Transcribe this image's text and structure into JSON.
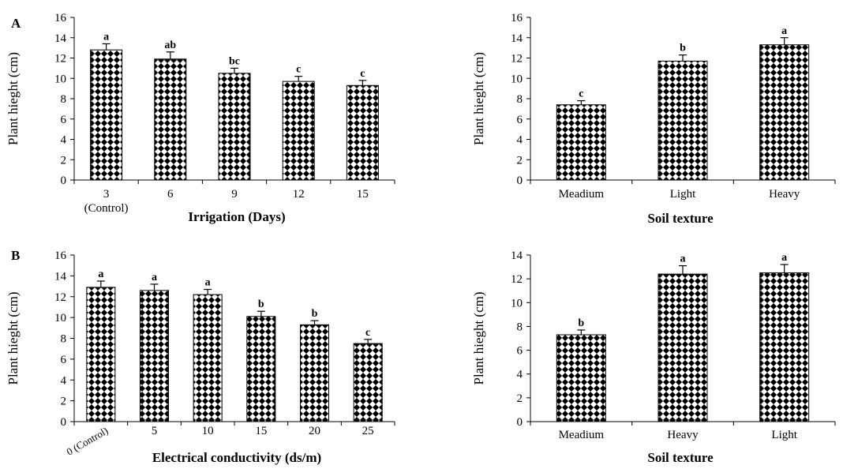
{
  "panel_labels": [
    "A",
    "B"
  ],
  "chart_data": [
    {
      "type": "bar",
      "panel": "A",
      "categories": [
        "3\n(Control)",
        "6",
        "9",
        "12",
        "15"
      ],
      "values": [
        12.8,
        11.9,
        10.5,
        9.7,
        9.3
      ],
      "errors": [
        0.6,
        0.7,
        0.5,
        0.5,
        0.5
      ],
      "letters": [
        "a",
        "ab",
        "bc",
        "c",
        "c"
      ],
      "xlabel": "Irrigation (Days)",
      "ylabel": "Plant hieght  (cm)",
      "ylim": [
        0,
        16
      ],
      "yticks": [
        0,
        2,
        4,
        6,
        8,
        10,
        12,
        14,
        16
      ],
      "grid": false
    },
    {
      "type": "bar",
      "categories": [
        "Meadium",
        "Light",
        "Heavy"
      ],
      "values": [
        7.4,
        11.7,
        13.3
      ],
      "errors": [
        0.4,
        0.6,
        0.7
      ],
      "letters": [
        "c",
        "b",
        "a"
      ],
      "xlabel": "Soil texture",
      "ylabel": "Plant hieght  (cm)",
      "ylim": [
        0,
        16
      ],
      "yticks": [
        0,
        2,
        4,
        6,
        8,
        10,
        12,
        14,
        16
      ],
      "grid": false
    },
    {
      "type": "bar",
      "panel": "B",
      "categories": [
        "0 (Control)",
        "5",
        "10",
        "15",
        "20",
        "25"
      ],
      "values": [
        12.9,
        12.6,
        12.2,
        10.1,
        9.3,
        7.5
      ],
      "errors": [
        0.6,
        0.6,
        0.5,
        0.5,
        0.4,
        0.4
      ],
      "letters": [
        "a",
        "a",
        "a",
        "b",
        "b",
        "c"
      ],
      "xlabel": "Electrical conductivity (ds/m)",
      "ylabel": "Plant hieght  (cm)",
      "ylim": [
        0,
        16
      ],
      "yticks": [
        0,
        2,
        4,
        6,
        8,
        10,
        12,
        14,
        16
      ],
      "grid": false
    },
    {
      "type": "bar",
      "categories": [
        "Meadium",
        "Heavy",
        "Light"
      ],
      "values": [
        7.3,
        12.4,
        12.5
      ],
      "errors": [
        0.4,
        0.7,
        0.7
      ],
      "letters": [
        "b",
        "a",
        "a"
      ],
      "xlabel": "Soil texture",
      "ylabel": "Plant hieght  (cm)",
      "ylim": [
        0,
        14
      ],
      "yticks": [
        0,
        2,
        4,
        6,
        8,
        10,
        12,
        14
      ],
      "grid": false
    }
  ]
}
